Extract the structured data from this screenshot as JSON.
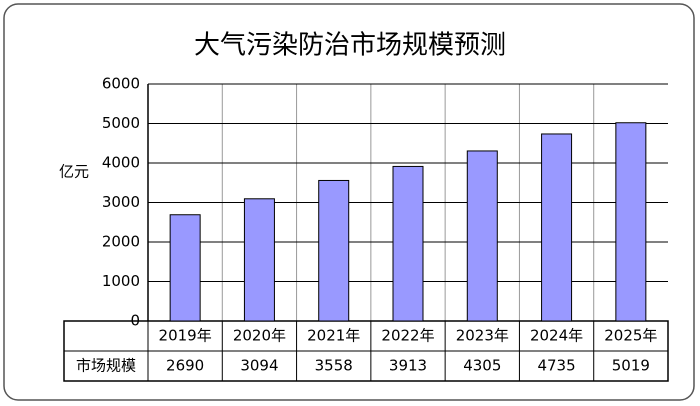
{
  "chart_data": {
    "type": "bar",
    "title": "大气污染防治市场规模预测",
    "y_label": "亿元",
    "categories": [
      "2019年",
      "2020年",
      "2021年",
      "2022年",
      "2023年",
      "2024年",
      "2025年"
    ],
    "series": [
      {
        "name": "市场规模",
        "color": "#9999ff",
        "values": [
          2690,
          3094,
          3558,
          3913,
          4305,
          4735,
          5019
        ]
      }
    ],
    "ylim": [
      0,
      6000
    ],
    "yticks": [
      0,
      1000,
      2000,
      3000,
      4000,
      5000,
      6000
    ],
    "grid": true
  }
}
